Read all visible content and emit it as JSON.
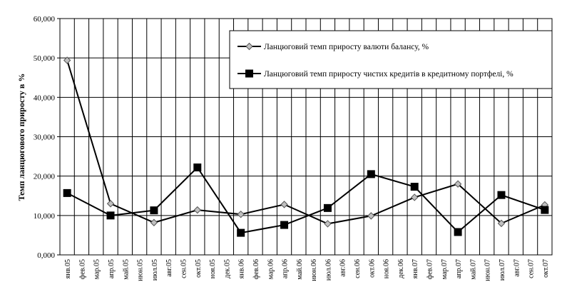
{
  "chart_data": {
    "type": "line",
    "title": "",
    "xlabel": "",
    "ylabel": "Темп ланцюгового приросту в %",
    "ylim": [
      0,
      60000
    ],
    "y_ticks": [
      "0,000",
      "10,000",
      "20,000",
      "30,000",
      "40,000",
      "50,000",
      "60,000"
    ],
    "grid": true,
    "legend_position": "top-right",
    "categories": [
      "янв.05",
      "фев.05",
      "мар.05",
      "апр.05",
      "май.05",
      "июн.05",
      "июл.05",
      "авг.05",
      "сен.05",
      "окт.05",
      "ноя.05",
      "дек.05",
      "янв.06",
      "фев.06",
      "мар.06",
      "апр.06",
      "май.06",
      "июн.06",
      "июл.06",
      "авг.06",
      "сен.06",
      "окт.06",
      "ноя.06",
      "дек.06",
      "янв.07",
      "фев.07",
      "мар.07",
      "апр.07",
      "май.07",
      "июн.07",
      "июл.07",
      "авг.07",
      "сен.07",
      "окт.07"
    ],
    "series": [
      {
        "name": "Ланцюговий темп приросту валюти балансу, %",
        "marker": "diamond",
        "color": "#000000",
        "marker_fill": "#c0c0c0",
        "x": [
          "янв.05",
          "апр.05",
          "июл.05",
          "окт.05",
          "янв.06",
          "апр.06",
          "июл.06",
          "окт.06",
          "янв.07",
          "апр.07",
          "июл.07",
          "окт.07"
        ],
        "values": [
          49400,
          13000,
          8200,
          11400,
          10300,
          12800,
          7900,
          9900,
          14600,
          18000,
          8000,
          12700
        ]
      },
      {
        "name": "Ланцюговий темп приросту чистих кредитів в кредитному портфелі, %",
        "marker": "square",
        "color": "#000000",
        "marker_fill": "#000000",
        "x": [
          "янв.05",
          "апр.05",
          "июл.05",
          "окт.05",
          "янв.06",
          "апр.06",
          "июл.06",
          "окт.06",
          "янв.07",
          "апр.07",
          "июл.07",
          "окт.07"
        ],
        "values": [
          15700,
          10000,
          11300,
          22200,
          5600,
          7600,
          11900,
          20500,
          17300,
          5800,
          15200,
          11400
        ]
      }
    ]
  }
}
